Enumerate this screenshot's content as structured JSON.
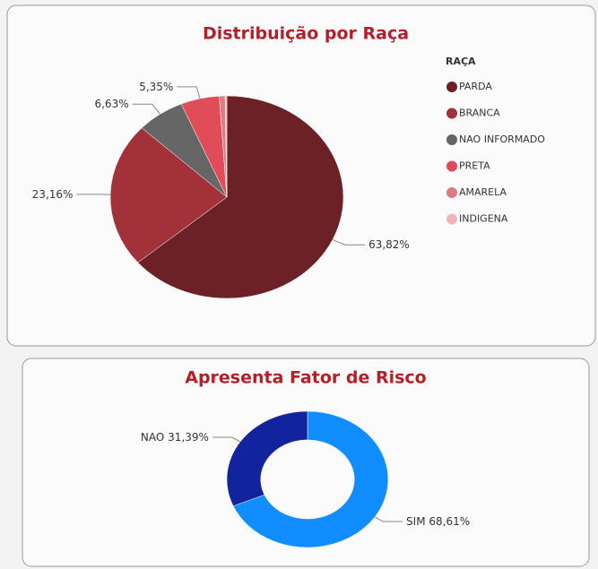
{
  "chart_data": [
    {
      "type": "pie",
      "title": "Distribuição por Raça",
      "legend_title": "RAÇA",
      "categories": [
        "PARDA",
        "BRANCA",
        "NAO INFORMADO",
        "PRETA",
        "AMARELA",
        "INDIGENA"
      ],
      "values": [
        63.82,
        23.16,
        6.63,
        5.35,
        0.8,
        0.24
      ],
      "value_labels": [
        "63,82%",
        "23,16%",
        "6,63%",
        "5,35%",
        null,
        null
      ],
      "colors": [
        "#6b2126",
        "#a3313a",
        "#666666",
        "#e04c57",
        "#e07b83",
        "#f0b3b8"
      ]
    },
    {
      "type": "donut",
      "title": "Apresenta Fator de Risco",
      "categories": [
        "SIM",
        "NAO"
      ],
      "values": [
        68.61,
        31.39
      ],
      "value_labels": [
        "68,61%",
        "31,39%"
      ],
      "colors": [
        "#118dff",
        "#12239e"
      ]
    }
  ]
}
